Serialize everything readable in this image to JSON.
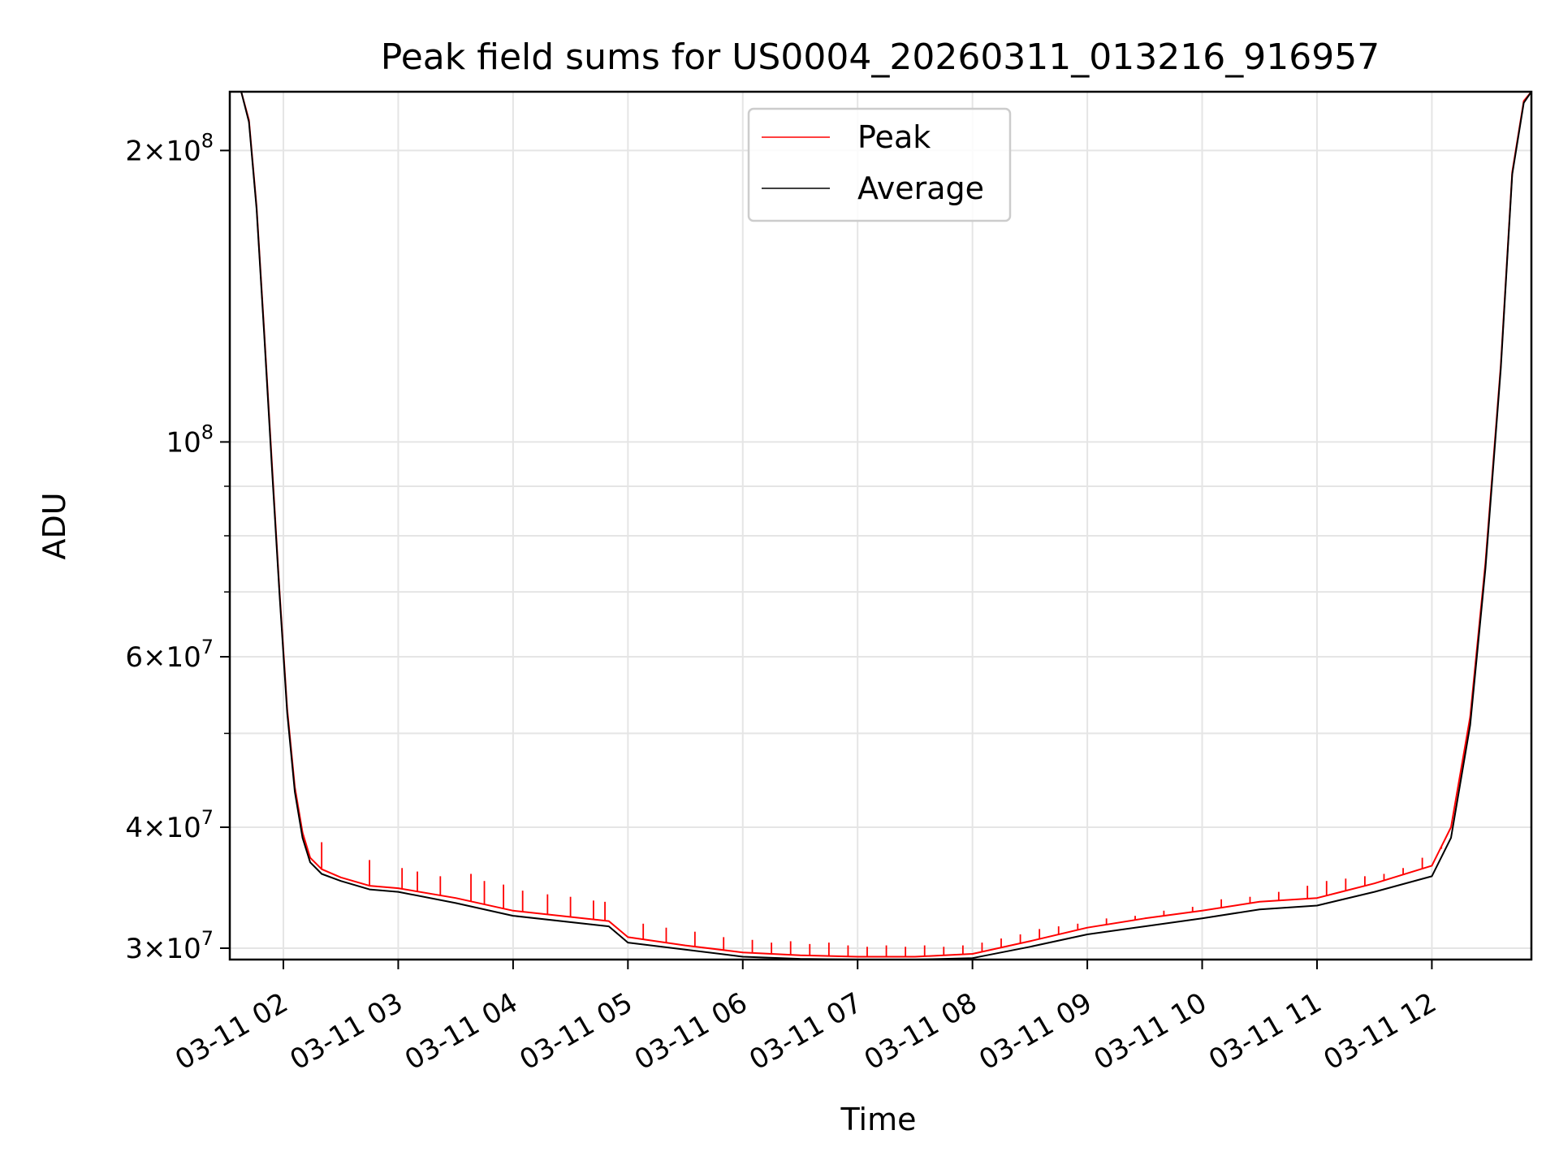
{
  "chart_data": {
    "type": "line",
    "title": "Peak field sums for US0004_20260311_013216_916957",
    "xlabel": "Time",
    "ylabel": "ADU",
    "yscale": "log",
    "grid": true,
    "legend_placement": "top-center",
    "xlim": [
      "03-11 01:32",
      "03-11 12:52"
    ],
    "ylim": [
      29200000,
      230000000
    ],
    "xticks": [
      "03-11 02",
      "03-11 03",
      "03-11 04",
      "03-11 05",
      "03-11 06",
      "03-11 07",
      "03-11 08",
      "03-11 09",
      "03-11 10",
      "03-11 11",
      "03-11 12"
    ],
    "yticks": [
      {
        "value": 30000000,
        "base": "3",
        "exp": "7"
      },
      {
        "value": 40000000,
        "base": "4",
        "exp": "7"
      },
      {
        "value": 60000000,
        "base": "6",
        "exp": "7"
      },
      {
        "value": 100000000,
        "base": "",
        "exp": "8"
      },
      {
        "value": 200000000,
        "base": "2",
        "exp": "8"
      }
    ],
    "yminor_ticks": [
      50000000,
      70000000,
      80000000,
      90000000
    ],
    "series": [
      {
        "name": "Peak",
        "color": "#ff0000",
        "x": [
          "03-11 01:32",
          "03-11 01:38",
          "03-11 01:42",
          "03-11 01:46",
          "03-11 01:50",
          "03-11 01:54",
          "03-11 01:58",
          "03-11 02:02",
          "03-11 02:06",
          "03-11 02:10",
          "03-11 02:14",
          "03-11 02:20",
          "03-11 02:30",
          "03-11 02:45",
          "03-11 03:00",
          "03-11 03:30",
          "03-11 04:00",
          "03-11 04:50",
          "03-11 05:00",
          "03-11 05:30",
          "03-11 06:00",
          "03-11 06:30",
          "03-11 07:00",
          "03-11 07:30",
          "03-11 08:00",
          "03-11 08:30",
          "03-11 09:00",
          "03-11 09:30",
          "03-11 10:00",
          "03-11 10:30",
          "03-11 11:00",
          "03-11 11:30",
          "03-11 12:00",
          "03-11 12:10",
          "03-11 12:20",
          "03-11 12:28",
          "03-11 12:36",
          "03-11 12:42",
          "03-11 12:48",
          "03-11 12:52"
        ],
        "y": [
          230000000,
          230000000,
          215000000,
          175000000,
          130000000,
          95000000,
          70000000,
          53000000,
          44000000,
          39500000,
          37200000,
          36200000,
          35500000,
          34800000,
          34600000,
          33800000,
          32800000,
          32000000,
          30800000,
          30200000,
          29700000,
          29500000,
          29400000,
          29400000,
          29600000,
          30500000,
          31500000,
          32200000,
          32800000,
          33500000,
          33800000,
          35000000,
          36500000,
          40000000,
          52000000,
          75000000,
          120000000,
          190000000,
          225000000,
          230000000
        ],
        "spikes": [
          [
            "03-11 02:20",
            38600000
          ],
          [
            "03-11 02:45",
            37000000
          ],
          [
            "03-11 03:02",
            36300000
          ],
          [
            "03-11 03:10",
            36000000
          ],
          [
            "03-11 03:22",
            35600000
          ],
          [
            "03-11 03:38",
            35800000
          ],
          [
            "03-11 03:45",
            35200000
          ],
          [
            "03-11 03:55",
            34900000
          ],
          [
            "03-11 04:05",
            34400000
          ],
          [
            "03-11 04:18",
            34100000
          ],
          [
            "03-11 04:30",
            33900000
          ],
          [
            "03-11 04:42",
            33600000
          ],
          [
            "03-11 04:48",
            33500000
          ],
          [
            "03-11 05:08",
            31800000
          ],
          [
            "03-11 05:20",
            31500000
          ],
          [
            "03-11 05:35",
            31200000
          ],
          [
            "03-11 05:50",
            30800000
          ],
          [
            "03-11 06:05",
            30600000
          ],
          [
            "03-11 06:15",
            30400000
          ],
          [
            "03-11 06:25",
            30500000
          ],
          [
            "03-11 06:35",
            30300000
          ],
          [
            "03-11 06:45",
            30400000
          ],
          [
            "03-11 06:55",
            30200000
          ],
          [
            "03-11 07:05",
            30100000
          ],
          [
            "03-11 07:15",
            30200000
          ],
          [
            "03-11 07:25",
            30100000
          ],
          [
            "03-11 07:35",
            30200000
          ],
          [
            "03-11 07:45",
            30100000
          ],
          [
            "03-11 07:55",
            30200000
          ],
          [
            "03-11 08:05",
            30400000
          ],
          [
            "03-11 08:15",
            30700000
          ],
          [
            "03-11 08:25",
            31000000
          ],
          [
            "03-11 08:35",
            31400000
          ],
          [
            "03-11 08:45",
            31600000
          ],
          [
            "03-11 08:55",
            31800000
          ],
          [
            "03-11 09:10",
            32200000
          ],
          [
            "03-11 09:25",
            32400000
          ],
          [
            "03-11 09:40",
            32800000
          ],
          [
            "03-11 09:55",
            33100000
          ],
          [
            "03-11 10:10",
            33700000
          ],
          [
            "03-11 10:25",
            33900000
          ],
          [
            "03-11 10:40",
            34300000
          ],
          [
            "03-11 10:55",
            34800000
          ],
          [
            "03-11 11:05",
            35200000
          ],
          [
            "03-11 11:15",
            35400000
          ],
          [
            "03-11 11:25",
            35600000
          ],
          [
            "03-11 11:35",
            35800000
          ],
          [
            "03-11 11:45",
            36300000
          ],
          [
            "03-11 11:55",
            37200000
          ],
          [
            "03-11 12:05",
            38000000
          ]
        ]
      },
      {
        "name": "Average",
        "color": "#000000",
        "x": [
          "03-11 01:32",
          "03-11 01:38",
          "03-11 01:42",
          "03-11 01:46",
          "03-11 01:50",
          "03-11 01:54",
          "03-11 01:58",
          "03-11 02:02",
          "03-11 02:06",
          "03-11 02:10",
          "03-11 02:14",
          "03-11 02:20",
          "03-11 02:30",
          "03-11 02:45",
          "03-11 03:00",
          "03-11 03:30",
          "03-11 04:00",
          "03-11 04:50",
          "03-11 05:00",
          "03-11 05:30",
          "03-11 06:00",
          "03-11 06:30",
          "03-11 07:00",
          "03-11 07:30",
          "03-11 08:00",
          "03-11 08:30",
          "03-11 09:00",
          "03-11 09:30",
          "03-11 10:00",
          "03-11 10:30",
          "03-11 11:00",
          "03-11 11:30",
          "03-11 12:00",
          "03-11 12:10",
          "03-11 12:20",
          "03-11 12:28",
          "03-11 12:36",
          "03-11 12:42",
          "03-11 12:48",
          "03-11 12:52"
        ],
        "y": [
          230000000,
          230000000,
          214000000,
          174000000,
          129000000,
          94000000,
          69500000,
          52500000,
          43500000,
          39000000,
          36800000,
          35800000,
          35200000,
          34500000,
          34300000,
          33400000,
          32400000,
          31600000,
          30400000,
          29900000,
          29400000,
          29250000,
          29200000,
          29200000,
          29300000,
          30100000,
          31000000,
          31600000,
          32200000,
          32900000,
          33200000,
          34300000,
          35600000,
          39000000,
          51000000,
          74000000,
          119000000,
          189000000,
          224000000,
          230000000
        ]
      }
    ]
  }
}
